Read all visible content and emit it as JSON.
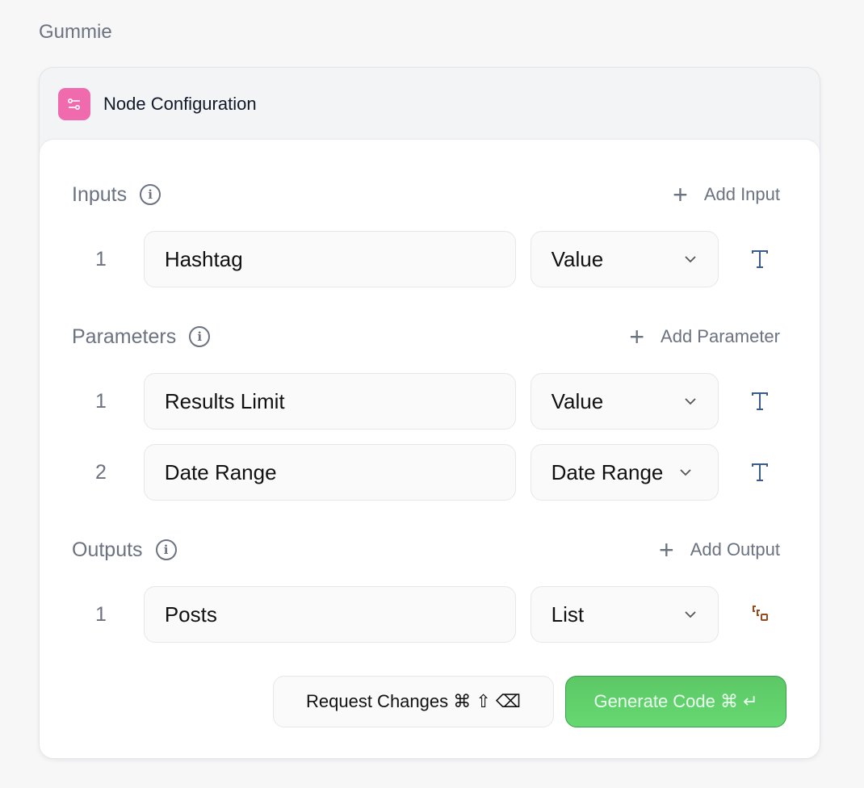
{
  "app": {
    "title": "Gummie"
  },
  "card": {
    "title": "Node Configuration",
    "icon": "sliders-icon",
    "accent": "#f06aae"
  },
  "inputs": {
    "title": "Inputs",
    "add_label": "Add Input",
    "rows": [
      {
        "num": "1",
        "name": "Hashtag",
        "type": "Value",
        "icon": "text-type-icon"
      }
    ]
  },
  "parameters": {
    "title": "Parameters",
    "add_label": "Add Parameter",
    "rows": [
      {
        "num": "1",
        "name": "Results Limit",
        "type": "Value",
        "icon": "text-type-icon"
      },
      {
        "num": "2",
        "name": "Date Range",
        "type": "Date Range",
        "icon": "text-type-icon"
      }
    ]
  },
  "outputs": {
    "title": "Outputs",
    "add_label": "Add Output",
    "rows": [
      {
        "num": "1",
        "name": "Posts",
        "type": "List",
        "icon": "list-type-icon"
      }
    ]
  },
  "actions": {
    "request_label": "Request Changes ⌘ ⇧ ⌫",
    "generate_label": "Generate Code ⌘ ↵",
    "generate_color": "#5cc865"
  }
}
